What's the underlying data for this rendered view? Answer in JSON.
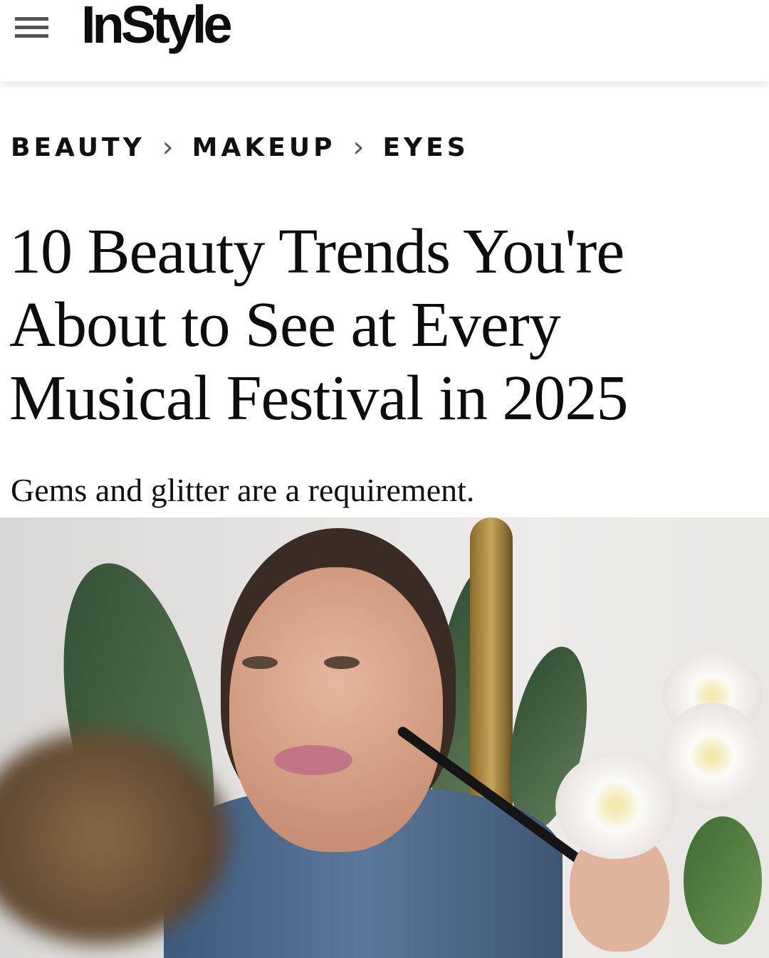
{
  "header": {
    "brand": "InStyle",
    "menu_icon": "hamburger-menu-icon"
  },
  "breadcrumb": [
    {
      "label": "BEAUTY"
    },
    {
      "label": "MAKEUP"
    },
    {
      "label": "EYES"
    }
  ],
  "breadcrumb_separator": "›",
  "article": {
    "title": "10 Beauty Trends You're About to See at Every Musical Festival in 2025",
    "dek": "Gems and glitter are a requirement."
  }
}
